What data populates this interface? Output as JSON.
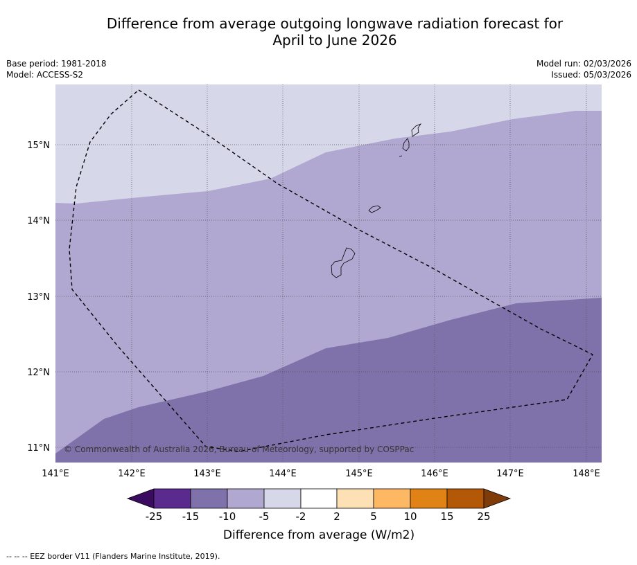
{
  "title_line1": "Difference from average outgoing longwave radiation forecast for",
  "title_line2": "April to June 2026",
  "base_period": "Base period: 1981-2018",
  "model": "Model: ACCESS-S2",
  "model_run": "Model run: 02/03/2026",
  "issued": "Issued: 05/03/2026",
  "copyright": "© Commonwealth of Australia 2026, Bureau of Meteorology, supported by COSPPac",
  "footnote": "--  --  -- EEZ border V11 (Flanders Marine Institute, 2019).",
  "x_ticks": [
    "141°E",
    "142°E",
    "143°E",
    "144°E",
    "145°E",
    "146°E",
    "147°E",
    "148°E"
  ],
  "y_ticks": [
    "15°N",
    "14°N",
    "13°N",
    "12°N",
    "11°N"
  ],
  "legend": {
    "title": "Difference from average (W/m2)",
    "labels": [
      "-25",
      "-15",
      "-10",
      "-5",
      "-2",
      "2",
      "5",
      "10",
      "15",
      "25"
    ],
    "colors": [
      "#3a0b5e",
      "#5b2a8e",
      "#7f72ab",
      "#b0a8d0",
      "#d7d7ea",
      "#ffffff",
      "#fee0b6",
      "#fdb863",
      "#e08214",
      "#b35806",
      "#7f3b08"
    ]
  },
  "map_colors": {
    "band_neg10_neg5": "#b0a8d0",
    "band_neg5_neg2": "#d7d7ea",
    "band_neg15_neg10": "#7f72ab"
  }
}
